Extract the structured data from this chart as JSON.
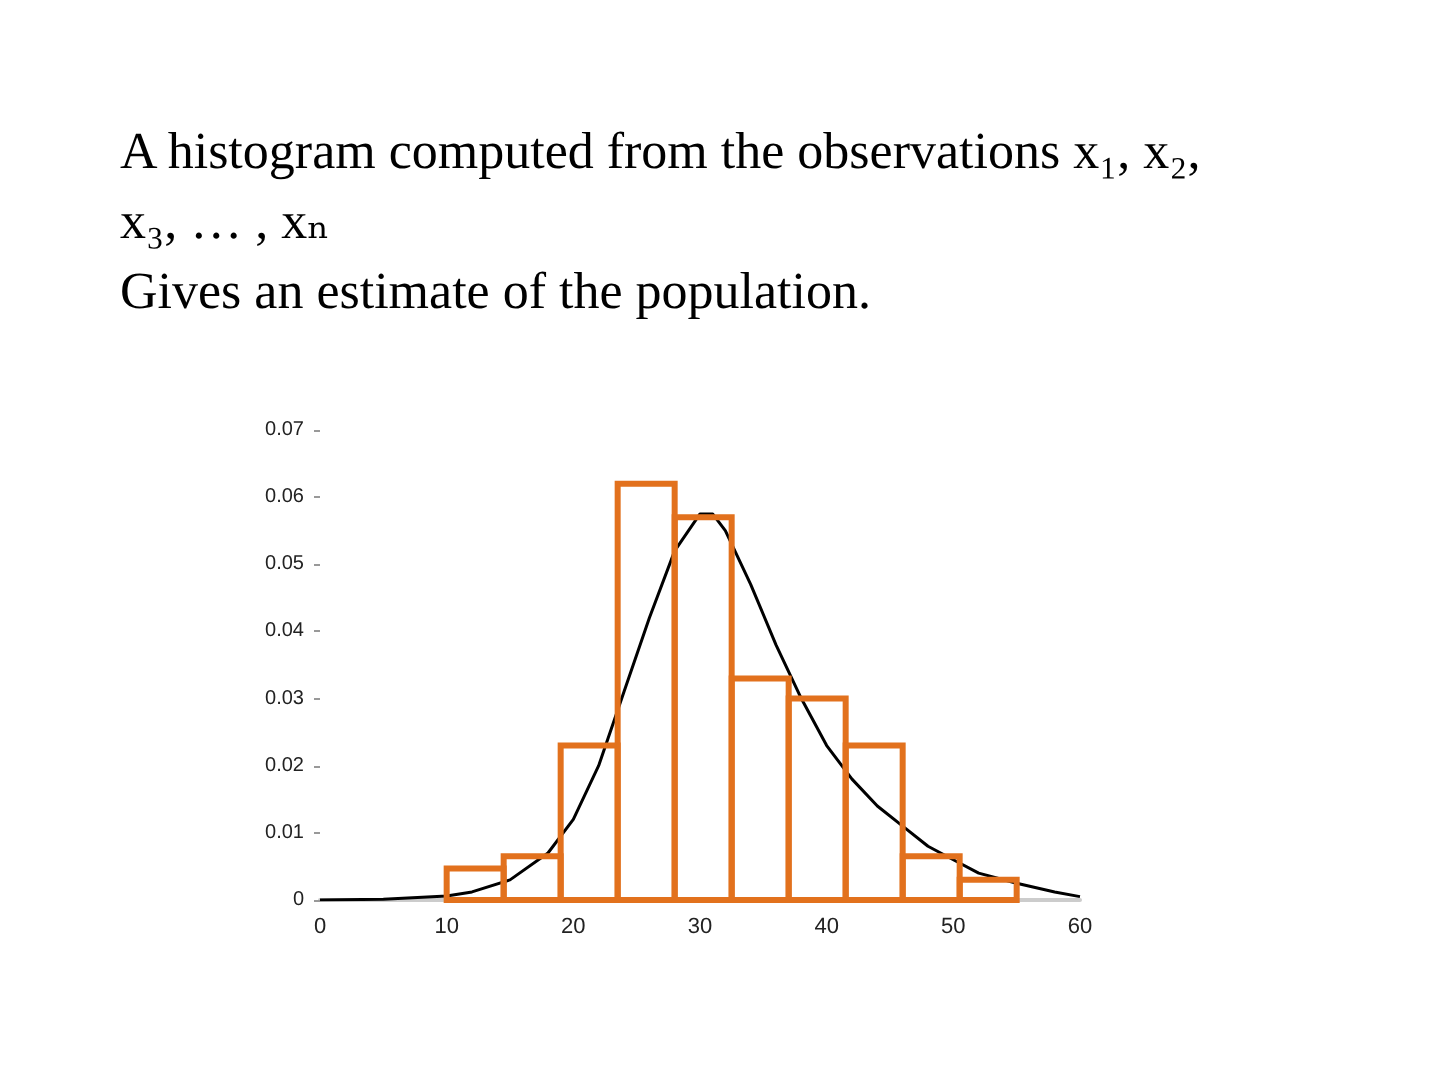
{
  "chart_data": {
    "type": "histogram",
    "title": "A histogram computed from the observations x₁, x₂, x₃, … , xₙ",
    "subtitle": "Gives an estimate of the population.",
    "bins": [
      10,
      14.5,
      19,
      23.5,
      28,
      32.5,
      37,
      41.5,
      46,
      50.5,
      55
    ],
    "series": [
      {
        "color": "#e2711d",
        "values": [
          0.0047,
          0.0065,
          0.023,
          0.062,
          0.057,
          0.033,
          0.03,
          0.023,
          0.0065,
          0.003
        ]
      },
      {
        "type": "line",
        "color": "#000000",
        "x": [
          0,
          5,
          10,
          12,
          15,
          18,
          20,
          22,
          24,
          26,
          28,
          30,
          31,
          32,
          34,
          36,
          38,
          40,
          42,
          44,
          46,
          48,
          50,
          52,
          55,
          58,
          60
        ],
        "values": [
          0,
          0.0001,
          0.0006,
          0.0012,
          0.003,
          0.007,
          0.012,
          0.02,
          0.031,
          0.042,
          0.052,
          0.0575,
          0.0575,
          0.055,
          0.047,
          0.038,
          0.03,
          0.023,
          0.018,
          0.014,
          0.011,
          0.008,
          0.006,
          0.004,
          0.0025,
          0.0012,
          0.0005
        ]
      }
    ],
    "xlim": [
      0,
      60
    ],
    "xticks": [
      0,
      10,
      20,
      30,
      40,
      50,
      60
    ],
    "ylim": [
      0,
      0.07
    ],
    "yticks": [
      0,
      0.01,
      0.02,
      0.03,
      0.04,
      0.05,
      0.06,
      0.07
    ],
    "grid": false
  }
}
